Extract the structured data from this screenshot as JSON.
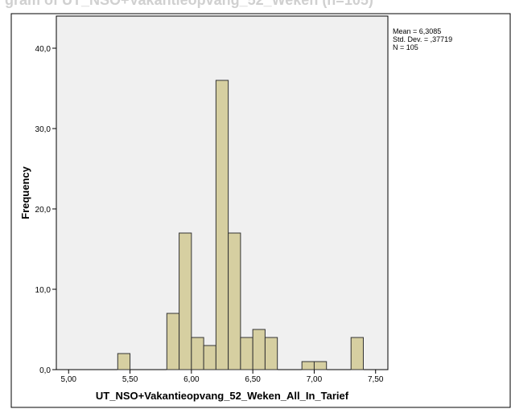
{
  "chart_data": {
    "type": "bar",
    "title": "",
    "xlabel": "UT_NSO+Vakantieopvang_52_Weken_All_In_Tarief",
    "ylabel": "Frequency",
    "bin_width": 0.1,
    "bins": [
      {
        "start": 5.4,
        "end": 5.5,
        "value": 2
      },
      {
        "start": 5.8,
        "end": 5.9,
        "value": 7
      },
      {
        "start": 5.9,
        "end": 6.0,
        "value": 17
      },
      {
        "start": 6.0,
        "end": 6.1,
        "value": 4
      },
      {
        "start": 6.1,
        "end": 6.2,
        "value": 3
      },
      {
        "start": 6.2,
        "end": 6.3,
        "value": 36
      },
      {
        "start": 6.3,
        "end": 6.4,
        "value": 17
      },
      {
        "start": 6.4,
        "end": 6.5,
        "value": 4
      },
      {
        "start": 6.5,
        "end": 6.6,
        "value": 5
      },
      {
        "start": 6.6,
        "end": 6.7,
        "value": 4
      },
      {
        "start": 6.9,
        "end": 7.0,
        "value": 1
      },
      {
        "start": 7.0,
        "end": 7.1,
        "value": 1
      },
      {
        "start": 7.3,
        "end": 7.4,
        "value": 4
      }
    ],
    "xlim": [
      4.9,
      7.6
    ],
    "ylim": [
      0,
      44
    ],
    "x_ticks": [
      5.0,
      5.5,
      6.0,
      6.5,
      7.0,
      7.5
    ],
    "x_tick_labels": [
      "5,00",
      "5,50",
      "6,00",
      "6,50",
      "7,00",
      "7,50"
    ],
    "y_ticks": [
      0,
      10,
      20,
      30,
      40
    ],
    "y_tick_labels": [
      "0,0",
      "10,0",
      "20,0",
      "30,0",
      "40,0"
    ],
    "stats": {
      "mean": "Mean = 6,3085",
      "std_dev": "Std. Dev. = ,37719",
      "n": "N = 105"
    },
    "grid": false,
    "colors": {
      "bar_fill": "#d6cfa1",
      "bar_stroke": "#333333",
      "plot_bg": "#f0f0f0"
    }
  },
  "clipped_heading": "gram of UT_NSO+Vakantieopvang_52_Weken (n=105)"
}
